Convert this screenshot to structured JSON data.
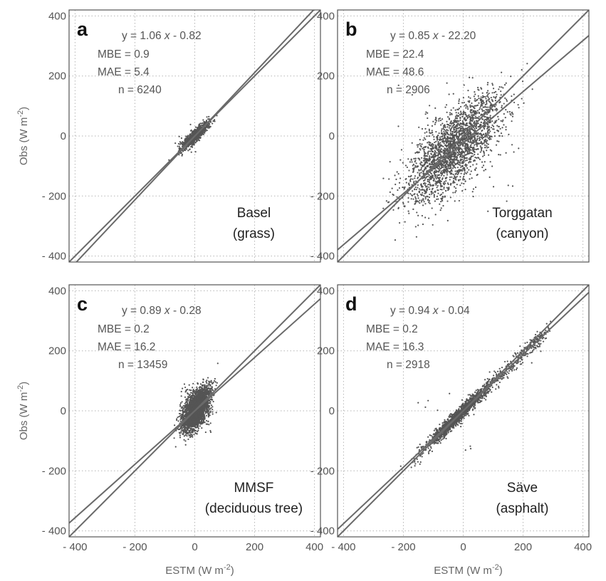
{
  "chart_data": [
    {
      "type": "scatter",
      "panel_label": "a",
      "site": [
        "Basel",
        "(grass)"
      ],
      "stats": {
        "equation": "y = 1.06 x -  0.82",
        "eq_lhs": "y = 1.06 ",
        "eq_var": "x",
        "eq_rhs": " -  0.82",
        "mbe": "MBE = 0.9",
        "mae": "MAE = 5.4",
        "n": "n = 6240"
      },
      "fit": {
        "slope": 1.06,
        "intercept": -0.82
      },
      "one_to_one": true,
      "cluster": {
        "cx": 0,
        "cy": 0,
        "sx": 22,
        "sy": 22,
        "rho": 0.88,
        "count": 1000,
        "outliers": 8,
        "tail": 0
      },
      "xlim": [
        -420,
        420
      ],
      "ylim": [
        -420,
        420
      ],
      "xticks": [
        -400,
        -200,
        0,
        200,
        400
      ],
      "yticks": [
        -400,
        -200,
        0,
        200,
        400
      ],
      "show_xlabel": false,
      "show_ylabel": true
    },
    {
      "type": "scatter",
      "panel_label": "b",
      "site": [
        "Torggatan",
        "(canyon)"
      ],
      "stats": {
        "equation": "y = 0.85 x -  22.20",
        "eq_lhs": "y = 0.85 ",
        "eq_var": "x",
        "eq_rhs": " -  22.20",
        "mbe": "MBE = 22.4",
        "mae": "MAE = 48.6",
        "n": "n = 2906"
      },
      "fit": {
        "slope": 0.85,
        "intercept": -22.2
      },
      "one_to_one": true,
      "cluster": {
        "cx": -30,
        "cy": -40,
        "sx": 80,
        "sy": 90,
        "rho": 0.72,
        "count": 2400,
        "outliers": 60,
        "tail": 0
      },
      "xlim": [
        -420,
        420
      ],
      "ylim": [
        -420,
        420
      ],
      "xticks": [
        -400,
        -200,
        0,
        200,
        400
      ],
      "yticks": [
        -400,
        -200,
        0,
        200,
        400
      ],
      "show_xlabel": false,
      "show_ylabel": false
    },
    {
      "type": "scatter",
      "panel_label": "c",
      "site": [
        "MMSF",
        "(deciduous tree)"
      ],
      "stats": {
        "equation": "y = 0.89 x -  0.28",
        "eq_lhs": "y = 0.89 ",
        "eq_var": "x",
        "eq_rhs": " -  0.28",
        "mbe": "MBE = 0.2",
        "mae": "MAE = 16.2",
        "n": "n = 13459"
      },
      "fit": {
        "slope": 0.89,
        "intercept": -0.28
      },
      "one_to_one": true,
      "cluster": {
        "cx": 5,
        "cy": 5,
        "sx": 22,
        "sy": 35,
        "rho": 0.55,
        "count": 3000,
        "outliers": 80,
        "tail": 0
      },
      "xlim": [
        -420,
        420
      ],
      "ylim": [
        -420,
        420
      ],
      "xticks": [
        -400,
        -200,
        0,
        200,
        400
      ],
      "yticks": [
        -400,
        -200,
        0,
        200,
        400
      ],
      "show_xlabel": true,
      "show_ylabel": true
    },
    {
      "type": "scatter",
      "panel_label": "d",
      "site": [
        "Säve",
        "(asphalt)"
      ],
      "stats": {
        "equation": "y = 0.94 x -  0.04",
        "eq_lhs": "y = 0.94 ",
        "eq_var": "x",
        "eq_rhs": " -  0.04",
        "mbe": "MBE = 0.2",
        "mae": "MAE = 16.3",
        "n": "n = 2918"
      },
      "fit": {
        "slope": 0.94,
        "intercept": -0.04
      },
      "one_to_one": true,
      "cluster": {
        "cx": -30,
        "cy": -30,
        "sx": 50,
        "sy": 50,
        "rho": 0.97,
        "count": 1800,
        "outliers": 15,
        "tail": 350
      },
      "xlim": [
        -420,
        420
      ],
      "ylim": [
        -420,
        420
      ],
      "xticks": [
        -400,
        -200,
        0,
        200,
        400
      ],
      "yticks": [
        -400,
        -200,
        0,
        200,
        400
      ],
      "show_xlabel": true,
      "show_ylabel": false
    }
  ],
  "axis_labels": {
    "x_main": "ESTM (W m",
    "x_exp": "-2",
    "x_close": ")",
    "y_main": "Obs (W m",
    "y_exp": "-2",
    "y_close": ")"
  },
  "tick_text": {
    "-400": "- 400",
    "-200": "- 200",
    "0": "0",
    "200": "200",
    "400": "400"
  }
}
